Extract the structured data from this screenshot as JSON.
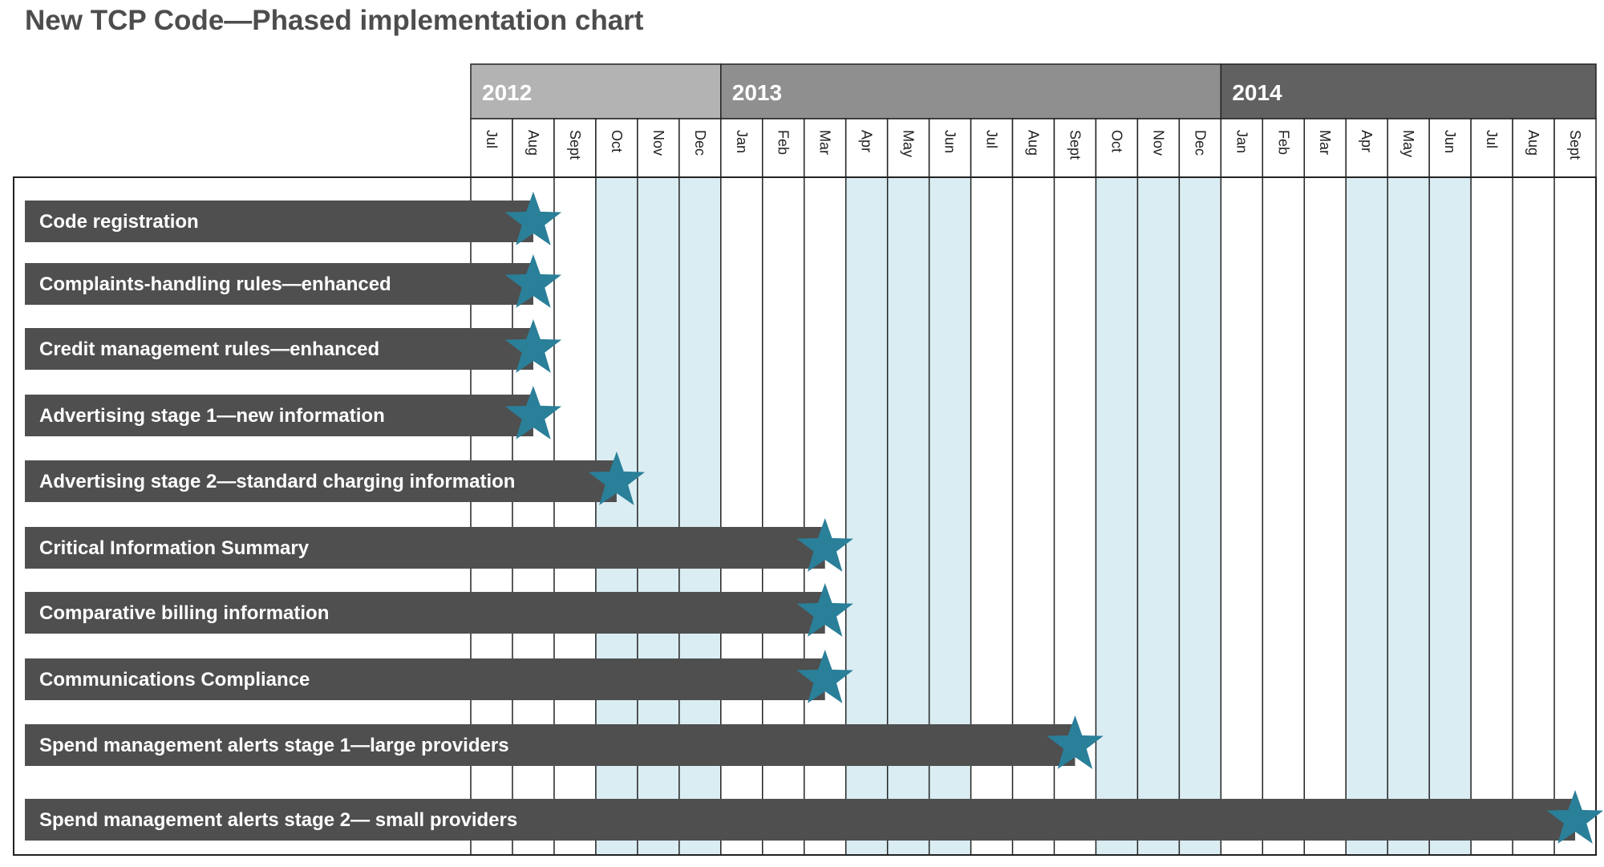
{
  "title": "New TCP Code—Phased implementation chart",
  "colors": {
    "title": "#4d4d4d",
    "bar": "#4f4f4f",
    "star": "#2a7f99",
    "shade": "#daedf3",
    "grid": "#222222",
    "year_fills": [
      "#b3b3b3",
      "#8f8f8f",
      "#616161"
    ]
  },
  "chart_data": {
    "type": "gantt",
    "title": "New TCP Code—Phased implementation chart",
    "years": [
      {
        "label": "2012",
        "months": 6
      },
      {
        "label": "2013",
        "months": 12
      },
      {
        "label": "2014",
        "months": 9
      }
    ],
    "months": [
      "Jul",
      "Aug",
      "Sept",
      "Oct",
      "Nov",
      "Dec",
      "Jan",
      "Feb",
      "Mar",
      "Apr",
      "May",
      "Jun",
      "Jul",
      "Aug",
      "Sept",
      "Oct",
      "Nov",
      "Dec",
      "Jan",
      "Feb",
      "Mar",
      "Apr",
      "May",
      "Jun",
      "Jul",
      "Aug",
      "Sept"
    ],
    "shaded_month_ranges": [
      [
        3,
        5
      ],
      [
        9,
        11
      ],
      [
        15,
        17
      ],
      [
        21,
        23
      ]
    ],
    "milestone_marker": "star-icon",
    "tasks": [
      {
        "label": "Code registration",
        "milestone": "Aug 2012"
      },
      {
        "label": "Complaints-handling rules—enhanced",
        "milestone": "Aug 2012"
      },
      {
        "label": "Credit management rules—enhanced",
        "milestone": "Aug 2012"
      },
      {
        "label": "Advertising stage 1—new information",
        "milestone": "Aug 2012"
      },
      {
        "label": "Advertising stage 2—standard charging information",
        "milestone": "Oct 2012"
      },
      {
        "label": "Critical Information Summary",
        "milestone": "Mar 2013"
      },
      {
        "label": "Comparative billing information",
        "milestone": "Mar 2013"
      },
      {
        "label": "Communications Compliance",
        "milestone": "Mar 2013"
      },
      {
        "label": "Spend management alerts stage 1—large providers",
        "milestone": "Sept 2013"
      },
      {
        "label": "Spend management alerts stage 2— small providers",
        "milestone": "Sept 2014"
      }
    ]
  }
}
